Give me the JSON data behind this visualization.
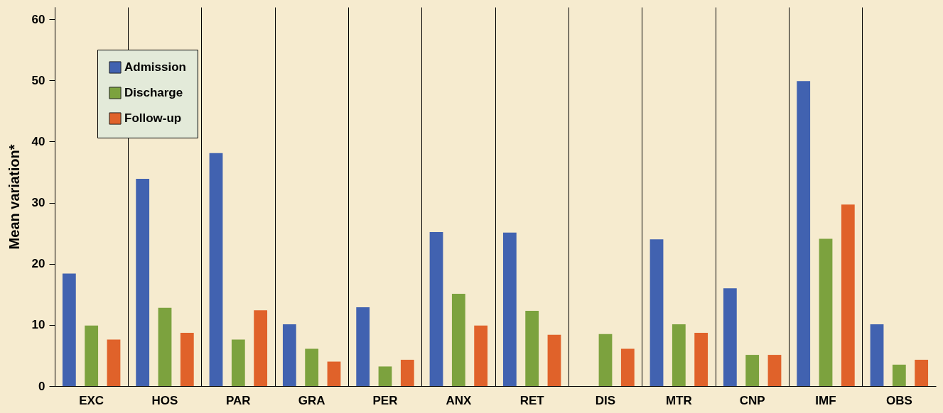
{
  "chart_data": {
    "type": "bar",
    "ylabel": "Mean variation*",
    "categories": [
      "EXC",
      "HOS",
      "PAR",
      "GRA",
      "PER",
      "ANX",
      "RET",
      "DIS",
      "MTR",
      "CNP",
      "IMF",
      "OBS"
    ],
    "series": [
      {
        "name": "Admission",
        "color": "#4162b0",
        "values": [
          18.4,
          33.9,
          38.1,
          10.1,
          12.9,
          25.2,
          25.1,
          null,
          24.0,
          16.0,
          49.9,
          10.1
        ]
      },
      {
        "name": "Discharge",
        "color": "#7ca23e",
        "values": [
          9.9,
          12.8,
          7.6,
          6.1,
          3.2,
          15.1,
          12.3,
          8.5,
          10.1,
          5.1,
          24.1,
          3.5
        ]
      },
      {
        "name": "Follow-up",
        "color": "#e0622a",
        "values": [
          7.6,
          8.7,
          12.4,
          4.0,
          4.3,
          9.9,
          8.4,
          6.1,
          8.7,
          5.1,
          29.7,
          4.3
        ]
      }
    ],
    "ylim": [
      0,
      62
    ],
    "yticks": [
      0,
      10,
      20,
      30,
      40,
      50,
      60
    ],
    "grid": "x",
    "legend": "top left"
  }
}
